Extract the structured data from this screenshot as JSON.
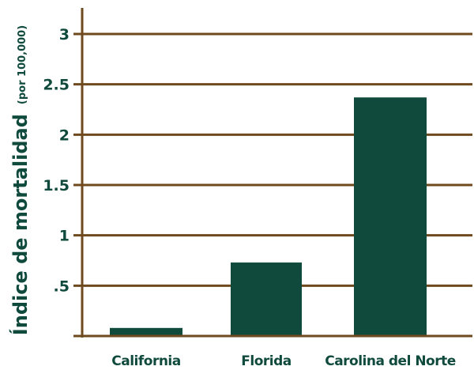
{
  "chart_data": {
    "type": "bar",
    "categories": [
      "California",
      "Florida",
      "Carolina del Norte"
    ],
    "values": [
      0.08,
      0.73,
      2.37
    ],
    "ylabel": "Índice de mortalidad",
    "ylabel_unit": "(por 100,000)",
    "ylim": [
      0,
      3
    ],
    "yticks": [
      {
        "value": 0.5,
        "label": ".5"
      },
      {
        "value": 1,
        "label": "1"
      },
      {
        "value": 1.5,
        "label": "1.5"
      },
      {
        "value": 2,
        "label": "2"
      },
      {
        "value": 2.5,
        "label": "2.5"
      },
      {
        "value": 3,
        "label": "3"
      }
    ],
    "grid": true,
    "colors": {
      "bar": "#0f4a3c",
      "grid": "#6e4a1e",
      "text": "#0f4a3c"
    }
  }
}
